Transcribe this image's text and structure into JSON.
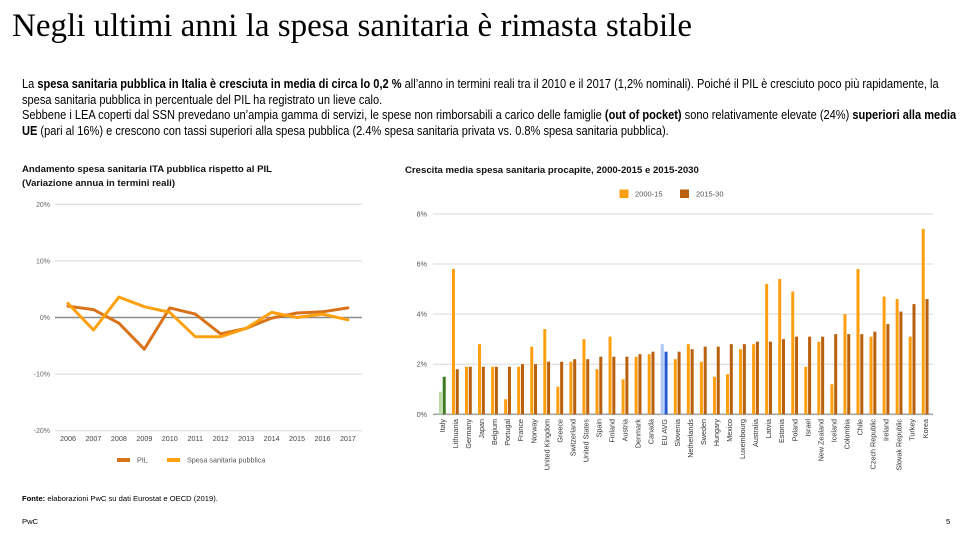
{
  "slide": {
    "title": "Negli ultimi anni la spesa sanitaria è rimasta stabile"
  },
  "body": {
    "p1_a": "La ",
    "p1_b": "spesa sanitaria pubblica in Italia è cresciuta in media di circa lo 0,2 %",
    "p1_c": " all’anno in termini reali tra il 2010 e il 2017 (1,2% nominali). Poiché il PIL è cresciuto poco più rapidamente, la spesa sanitaria pubblica in percentuale del PIL ha registrato un lieve calo.",
    "p2_a": "Sebbene i LEA coperti dal SSN prevedano un’ampia gamma di servizi, le spese non rimborsabili a carico delle famiglie ",
    "p2_b": "(out of pocket)",
    "p2_c": " sono relativamente elevate (24%) ",
    "p2_d": "superiori alla media UE",
    "p2_e": " (pari al 16%) e crescono con tassi superiori alla spesa pubblica (2.4% spesa sanitaria privata vs. 0.8% spesa sanitaria pubblica)."
  },
  "footer": {
    "source_label": "Fonte:",
    "source_text": " elaborazioni PwC su dati Eurostat e OECD (2019).",
    "brand": "PwC",
    "page_number": "5"
  },
  "chart_data": [
    {
      "type": "line",
      "title": "Andamento spesa sanitaria ITA pubblica rispetto al PIL",
      "subtitle": "(Variazione annua in termini reali)",
      "xlabel": "",
      "ylabel": "",
      "x": [
        "2006",
        "2007",
        "2008",
        "2009",
        "2010",
        "2011",
        "2012",
        "2013",
        "2014",
        "2015",
        "2016",
        "2017"
      ],
      "yticks": [
        20,
        10,
        0,
        -10,
        -20
      ],
      "ytick_labels": [
        "20%",
        "10%",
        "0%",
        "-10%",
        "-20%"
      ],
      "ylim": [
        -20,
        20
      ],
      "grid": true,
      "legend": "bottom",
      "series": [
        {
          "name": "PIL",
          "color": "#D8731A",
          "values": [
            2.0,
            1.4,
            -1.0,
            -5.6,
            1.7,
            0.6,
            -2.9,
            -1.9,
            -0.1,
            0.8,
            1.0,
            1.7
          ]
        },
        {
          "name": "Spesa sanitaria pubblica",
          "color": "#FFA10F",
          "values": [
            2.5,
            -2.2,
            3.6,
            1.9,
            0.9,
            -3.4,
            -3.4,
            -1.9,
            0.9,
            0.0,
            0.6,
            -0.4
          ]
        }
      ]
    },
    {
      "type": "bar",
      "title": "Crescita media spesa sanitaria procapite, 2000-2015 e 2015-2030",
      "xlabel": "",
      "ylabel": "",
      "categories": [
        "Italy",
        "Lithuania",
        "Germany",
        "Japan",
        "Belgium",
        "Portugal",
        "France",
        "Norway",
        "United Kingdom",
        "Greece",
        "Switzerland",
        "United States",
        "Spain",
        "Finland",
        "Austria",
        "Denmark",
        "Canada",
        "EU AVG",
        "Slovenia",
        "Netherlands",
        "Sweden",
        "Hungary",
        "Mexico",
        "Luxembourg",
        "Australia",
        "Latvia",
        "Estonia",
        "Poland",
        "Israel",
        "New Zealand",
        "Iceland",
        "Colombia",
        "Chile",
        "Czech Republic",
        "Ireland",
        "Slovak Republic",
        "Turkey",
        "Korea"
      ],
      "yticks": [
        8,
        6,
        4,
        2,
        0
      ],
      "ytick_labels": [
        "8%",
        "6%",
        "4%",
        "2%",
        "0%"
      ],
      "ylim": [
        0,
        8
      ],
      "grid": true,
      "legend": "top",
      "series": [
        {
          "name": "2000-15",
          "color": "#FF9E0E",
          "values": [
            0.9,
            5.8,
            1.9,
            2.8,
            1.9,
            0.6,
            1.9,
            2.7,
            3.4,
            1.1,
            2.1,
            3.0,
            1.8,
            3.1,
            1.4,
            2.3,
            2.4,
            2.8,
            2.2,
            2.8,
            2.1,
            1.5,
            1.6,
            2.6,
            2.8,
            5.2,
            5.4,
            4.9,
            1.9,
            2.9,
            1.2,
            4.0,
            5.8,
            3.1,
            4.7,
            4.6,
            3.1,
            7.4
          ]
        },
        {
          "name": "2015-30",
          "color": "#B8600E",
          "values": [
            1.5,
            1.8,
            1.9,
            1.9,
            1.9,
            1.9,
            2.0,
            2.0,
            2.1,
            2.1,
            2.2,
            2.2,
            2.3,
            2.3,
            2.3,
            2.4,
            2.5,
            2.5,
            2.5,
            2.6,
            2.7,
            2.7,
            2.8,
            2.8,
            2.9,
            2.9,
            3.0,
            3.1,
            3.1,
            3.1,
            3.2,
            3.2,
            3.2,
            3.3,
            3.6,
            4.1,
            4.4,
            4.6
          ]
        }
      ],
      "highlights": {
        "Italy": [
          "#B8DBA8",
          "#3C7A20"
        ],
        "EU AVG": [
          "#A9C5F2",
          "#2257D0"
        ]
      }
    }
  ]
}
